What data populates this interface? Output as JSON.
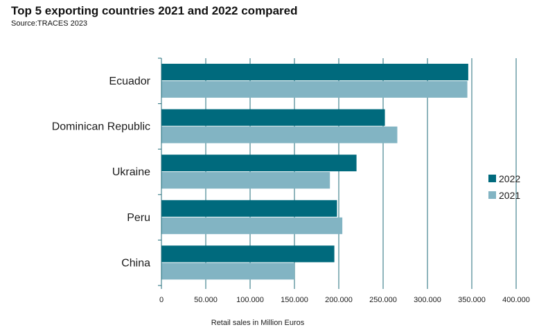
{
  "header": {
    "title": "Top 5 exporting countries 2021 and 2022 compared",
    "subtitle": "Source:TRACES 2023"
  },
  "chart_data": {
    "type": "bar",
    "orientation": "horizontal",
    "title": "Top 5 exporting countries 2021 and 2022 compared",
    "subtitle": "Source:TRACES 2023",
    "xlabel": "Retail sales in Million Euros",
    "ylabel": "",
    "categories": [
      "Ecuador",
      "Dominican Republic",
      "Ukraine",
      "Peru",
      "China"
    ],
    "series": [
      {
        "name": "2022",
        "color": "#006a7d",
        "values": [
          346000,
          252000,
          220000,
          198000,
          195000
        ]
      },
      {
        "name": "2021",
        "color": "#82b4c3",
        "values": [
          345000,
          266000,
          190000,
          204000,
          150000
        ]
      }
    ],
    "xlim": [
      0,
      400000
    ],
    "x_ticks": [
      0,
      50000,
      100000,
      150000,
      200000,
      250000,
      300000,
      350000,
      400000
    ],
    "x_tick_labels": [
      "0",
      "50.000",
      "100.000",
      "150.000",
      "200.000",
      "250.000",
      "300.000",
      "350.000",
      "400.000"
    ],
    "grid": true,
    "legend_position": "right"
  }
}
